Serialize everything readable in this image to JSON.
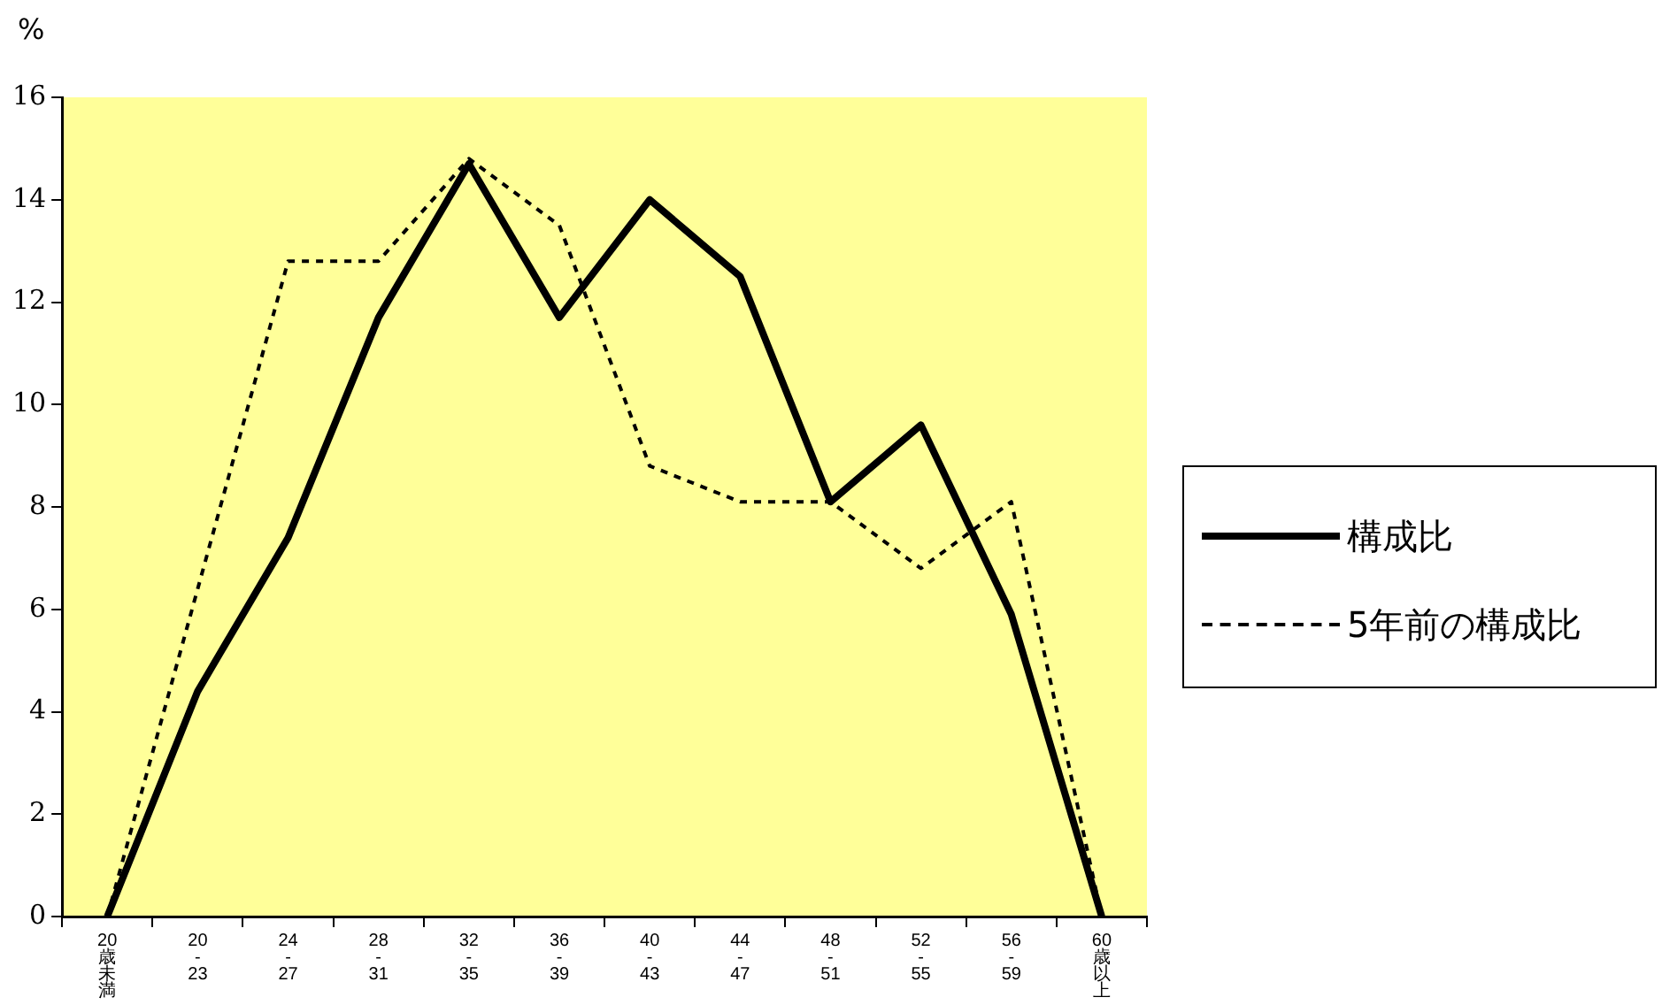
{
  "chart_data": {
    "type": "line",
    "ylabel": "%",
    "categories": [
      "20歳未満",
      "20-23",
      "24-27",
      "28-31",
      "32-35",
      "36-39",
      "40-43",
      "44-47",
      "48-51",
      "52-55",
      "56-59",
      "60歳以上"
    ],
    "series": [
      {
        "name": "構成比",
        "color": "#000000",
        "line_style": "solid",
        "values": [
          0,
          4.4,
          7.4,
          11.7,
          14.7,
          11.7,
          14.0,
          12.5,
          8.1,
          9.6,
          5.9,
          0
        ]
      },
      {
        "name": "5年前の構成比",
        "color": "#000000",
        "line_style": "dotted",
        "values": [
          0,
          6.4,
          12.8,
          12.8,
          14.8,
          13.5,
          8.8,
          8.1,
          8.1,
          6.8,
          8.1,
          0
        ]
      }
    ],
    "ylim": [
      0,
      16
    ],
    "yticks": [
      0,
      2,
      4,
      6,
      8,
      10,
      12,
      14,
      16
    ],
    "grid": false,
    "legend": "right",
    "marker": "none"
  }
}
